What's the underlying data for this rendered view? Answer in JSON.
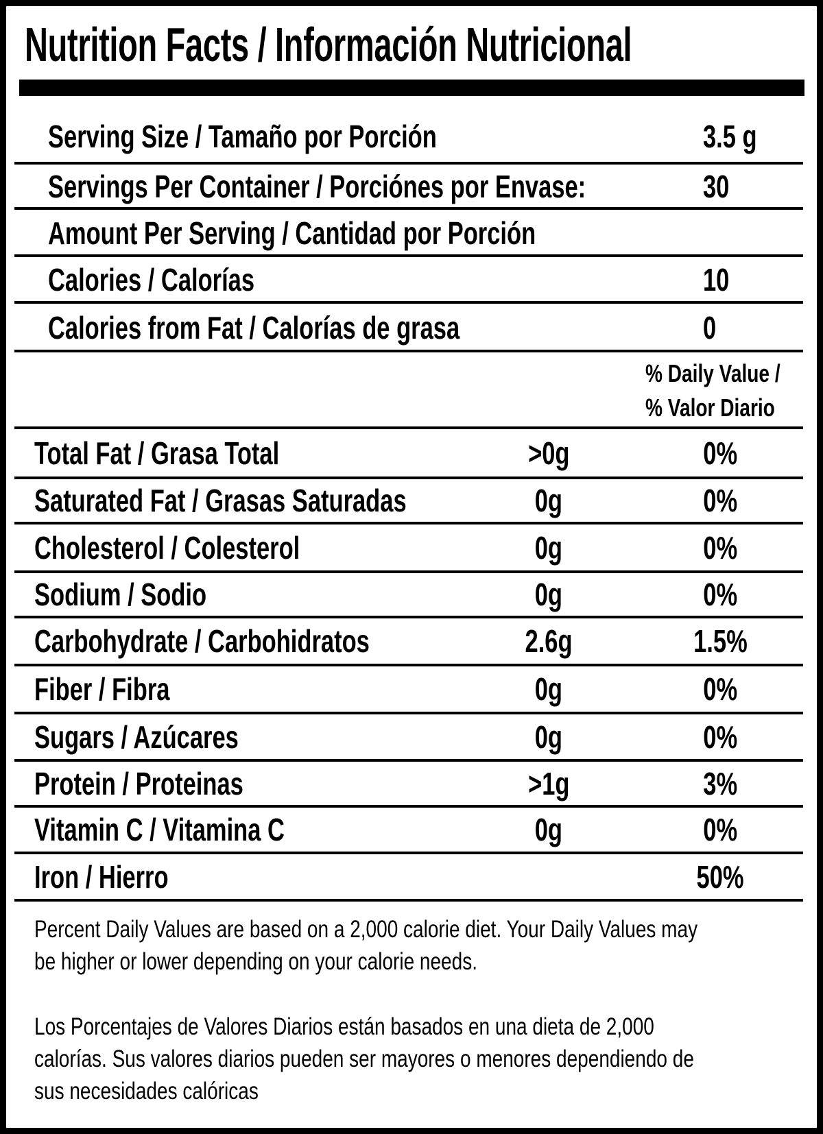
{
  "title": "Nutrition Facts / Información Nutricional",
  "colors": {
    "ink": "#000000",
    "background": "#ffffff"
  },
  "serving": [
    {
      "label": "Serving Size / Tamaño por Porción",
      "value": "3.5 g"
    },
    {
      "label": "Servings Per Container / Porciónes por Envase:",
      "value": "30"
    },
    {
      "label": "Amount Per Serving / Cantidad por Porción",
      "value": ""
    },
    {
      "label": "Calories / Calorías",
      "value": "10"
    },
    {
      "label": "Calories from Fat / Calorías de grasa",
      "value": "0"
    }
  ],
  "daily_value_header": {
    "line1": "% Daily Value /",
    "line2": "% Valor Diario"
  },
  "nutrients": [
    {
      "label": "Total Fat / Grasa Total",
      "amount": ">0g",
      "dv": "0%"
    },
    {
      "label": "Saturated Fat / Grasas Saturadas",
      "amount": "0g",
      "dv": "0%"
    },
    {
      "label": "Cholesterol / Colesterol",
      "amount": "0g",
      "dv": "0%"
    },
    {
      "label": "Sodium / Sodio",
      "amount": "0g",
      "dv": "0%"
    },
    {
      "label": "Carbohydrate / Carbohidratos",
      "amount": "2.6g",
      "dv": "1.5%"
    },
    {
      "label": "Fiber / Fibra",
      "amount": "0g",
      "dv": "0%"
    },
    {
      "label": "Sugars / Azúcares",
      "amount": "0g",
      "dv": "0%"
    },
    {
      "label": "Protein / Proteinas",
      "amount": ">1g",
      "dv": "3%"
    },
    {
      "label": "Vitamin C / Vitamina C",
      "amount": "0g",
      "dv": "0%"
    },
    {
      "label": "Iron / Hierro",
      "amount": "",
      "dv": "50%"
    }
  ],
  "footnote_en": [
    "Percent Daily Values are based on a 2,000 calorie diet. Your Daily Values may",
    "be higher or lower depending on your calorie needs."
  ],
  "footnote_es": [
    "Los Porcentajes de Valores Diarios están basados en una dieta de 2,000",
    "calorías. Sus valores diarios pueden ser mayores o menores dependiendo de",
    "sus necesidades calóricas"
  ]
}
